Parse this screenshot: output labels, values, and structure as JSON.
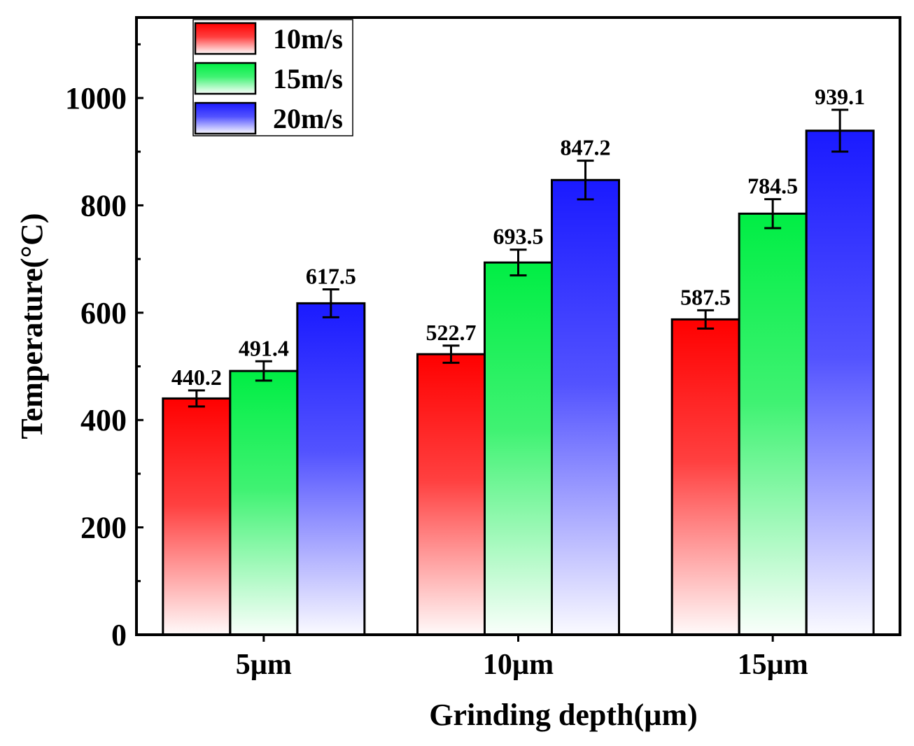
{
  "chart_data": {
    "type": "bar",
    "title": "",
    "xlabel": "Grinding depth(µm)",
    "ylabel": "Temperature(°C)",
    "categories": [
      "5µm",
      "10µm",
      "15µm"
    ],
    "ylim": [
      0,
      1150
    ],
    "yticks": [
      0,
      200,
      400,
      600,
      800,
      1000
    ],
    "grid": false,
    "legend_position": "top-left",
    "series": [
      {
        "name": "10m/s",
        "color": "#ff0000",
        "values": [
          440.2,
          522.7,
          587.5
        ],
        "errors": [
          15,
          16,
          17
        ],
        "labels": [
          "440.2",
          "522.7",
          "587.5"
        ]
      },
      {
        "name": "15m/s",
        "color": "#00ee44",
        "values": [
          491.4,
          693.5,
          784.5
        ],
        "errors": [
          18,
          24,
          27
        ],
        "labels": [
          "491.4",
          "693.5",
          "784.5"
        ]
      },
      {
        "name": "20m/s",
        "color": "#1a1aff",
        "values": [
          617.5,
          847.2,
          939.1
        ],
        "errors": [
          26,
          36,
          39
        ],
        "labels": [
          "617.5",
          "847.2",
          "939.1"
        ]
      }
    ]
  }
}
